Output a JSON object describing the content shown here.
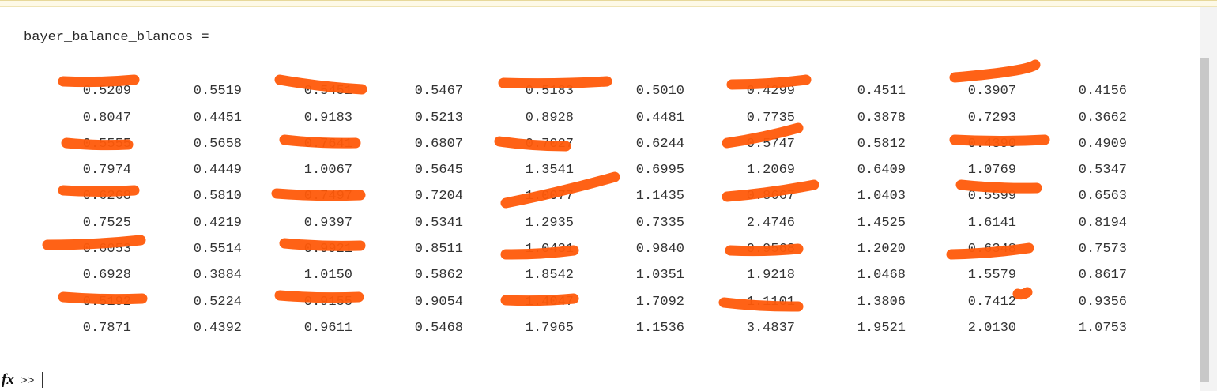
{
  "console": {
    "variable_line": "bayer_balance_blancos =",
    "prompt_icon": "fx-icon",
    "prompt_chevrons": ">>",
    "input_value": ""
  },
  "matrix": {
    "rows": [
      [
        "0.5209",
        "0.5519",
        "0.5451",
        "0.5467",
        "0.5183",
        "0.5010",
        "0.4299",
        "0.4511",
        "0.3907",
        "0.4156"
      ],
      [
        "0.8047",
        "0.4451",
        "0.9183",
        "0.5213",
        "0.8928",
        "0.4481",
        "0.7735",
        "0.3878",
        "0.7293",
        "0.3662"
      ],
      [
        "0.5555",
        "0.5658",
        "0.7641",
        "0.6807",
        "0.7027",
        "0.6244",
        "0.5747",
        "0.5812",
        "0.4390",
        "0.4909"
      ],
      [
        "0.7974",
        "0.4449",
        "1.0067",
        "0.5645",
        "1.3541",
        "0.6995",
        "1.2069",
        "0.6409",
        "1.0769",
        "0.5347"
      ],
      [
        "0.6268",
        "0.5810",
        "0.7497",
        "0.7204",
        "1.0077",
        "1.1435",
        "0.8667",
        "1.0403",
        "0.5599",
        "0.6563"
      ],
      [
        "0.7525",
        "0.4219",
        "0.9397",
        "0.5341",
        "1.2935",
        "0.7335",
        "2.4746",
        "1.4525",
        "1.6141",
        "0.8194"
      ],
      [
        "0.6053",
        "0.5514",
        "0.9921",
        "0.8511",
        "1.0431",
        "0.9840",
        "0.9568",
        "1.2020",
        "0.6348",
        "0.7573"
      ],
      [
        "0.6928",
        "0.3884",
        "1.0150",
        "0.5862",
        "1.8542",
        "1.0351",
        "1.9218",
        "1.0468",
        "1.5579",
        "0.8617"
      ],
      [
        "0.5192",
        "0.5224",
        "0.9155",
        "0.9054",
        "1.4047",
        "1.7092",
        "1.1101",
        "1.3806",
        "0.7412",
        "0.9356"
      ],
      [
        "0.7871",
        "0.4392",
        "0.9611",
        "0.5468",
        "1.7965",
        "1.1536",
        "3.4837",
        "1.9521",
        "2.0130",
        "1.0753"
      ]
    ]
  },
  "annotation": {
    "stroke_color": "#ff5a0a"
  }
}
